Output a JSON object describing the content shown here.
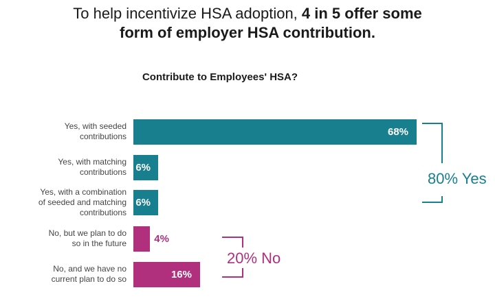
{
  "headline": {
    "normal": "To help incentivize HSA adoption, ",
    "bold1": "4 in 5 offer some",
    "bold2": "form of employer HSA contribution."
  },
  "colors": {
    "yes": "#177f8e",
    "no": "#b0307e"
  },
  "chart_data": {
    "type": "bar",
    "orientation": "horizontal",
    "title": "Contribute to Employees' HSA?",
    "categories": [
      "Yes, with seeded contributions",
      "Yes, with matching contributions",
      "Yes, with a combination of seeded and matching contributions",
      "No, but we plan to do so in the future",
      "No, and we have no current plan to do so"
    ],
    "values": [
      68,
      6,
      6,
      4,
      16
    ],
    "data_labels": [
      "68%",
      "6%",
      "6%",
      "4%",
      "16%"
    ],
    "groups": [
      "yes",
      "yes",
      "yes",
      "no",
      "no"
    ],
    "annotations": [
      {
        "group": "yes",
        "text": "80% Yes"
      },
      {
        "group": "no",
        "text": "20% No"
      }
    ],
    "xlim": [
      0,
      100
    ],
    "grid": false
  }
}
